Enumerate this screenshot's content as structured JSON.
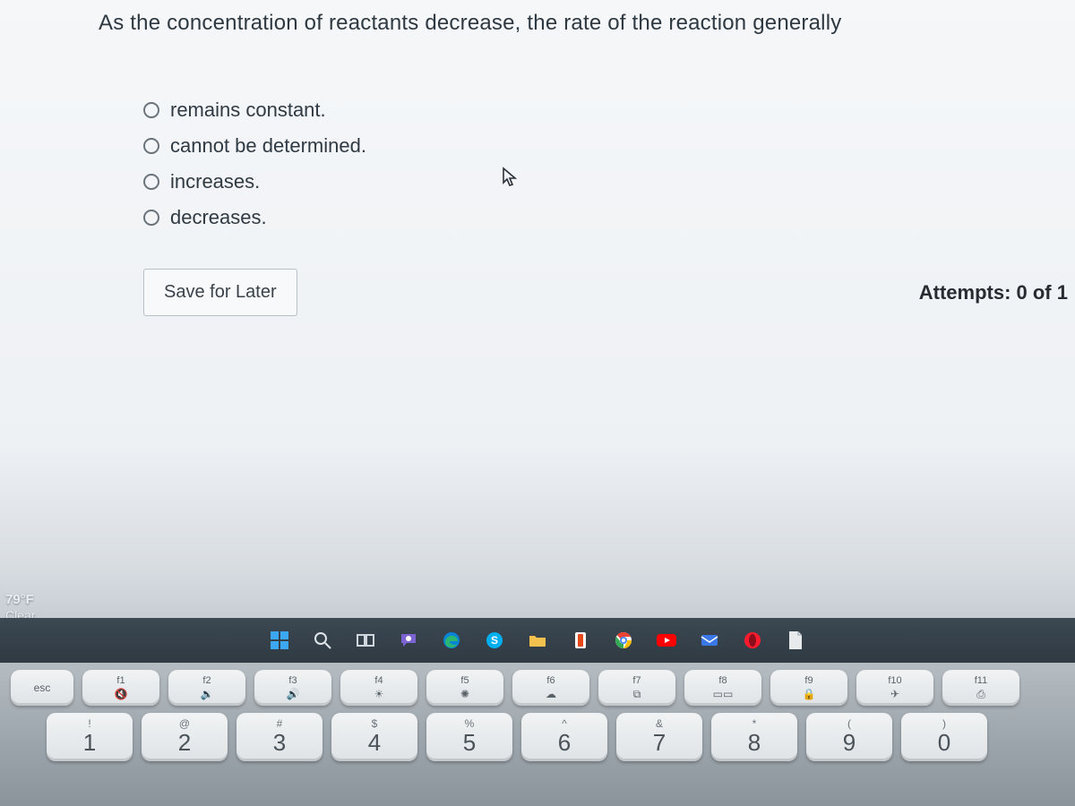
{
  "question": "As the concentration of reactants decrease, the rate of the reaction generally",
  "options": [
    "remains constant.",
    "cannot be determined.",
    "increases.",
    "decreases."
  ],
  "save_label": "Save for Later",
  "attempts_label": "Attempts: 0 of 1",
  "weather": {
    "temp": "79°F",
    "cond": "Clear"
  },
  "colors": {
    "page_bg": "#f5f7f9",
    "text": "#2e3942",
    "radio_border": "#6a737b",
    "button_border": "#b9c0c6",
    "button_bg": "#f7f9fa",
    "taskbar_top": "#3c4852",
    "taskbar_bottom": "#2f3a43",
    "keyboard_top": "#b5bcc2",
    "keyboard_bottom": "#8b949b",
    "key_face": "#e8ebed"
  },
  "taskbar": [
    {
      "name": "start-icon",
      "type": "windows",
      "color": "#3ba7f5"
    },
    {
      "name": "search-icon",
      "type": "search",
      "color": "#dfe5ea"
    },
    {
      "name": "taskview-icon",
      "type": "taskview",
      "color": "#cfd6dc"
    },
    {
      "name": "chat-icon",
      "type": "chat",
      "color": "#7d64d4"
    },
    {
      "name": "edge-icon",
      "type": "edge",
      "color": "#2bb673"
    },
    {
      "name": "skype-icon",
      "type": "circle-s",
      "color": "#00aff0"
    },
    {
      "name": "explorer-icon",
      "type": "folder",
      "color": "#f4c04e"
    },
    {
      "name": "office-icon",
      "type": "office",
      "color": "#e64a19"
    },
    {
      "name": "chrome-icon",
      "type": "chrome",
      "color": "#4285f4"
    },
    {
      "name": "youtube-icon",
      "type": "youtube",
      "color": "#ff0000"
    },
    {
      "name": "mail-icon",
      "type": "mail",
      "color": "#3b78e7"
    },
    {
      "name": "opera-icon",
      "type": "opera",
      "color": "#ff1b2d"
    },
    {
      "name": "doc-icon",
      "type": "doc",
      "color": "#e8eaec"
    }
  ],
  "keyboard": {
    "esc": "esc",
    "fn_row": [
      {
        "fn": "f1",
        "sym": "🔇"
      },
      {
        "fn": "f2",
        "sym": "🔉"
      },
      {
        "fn": "f3",
        "sym": "🔊"
      },
      {
        "fn": "f4",
        "sym": "☀"
      },
      {
        "fn": "f5",
        "sym": "✺"
      },
      {
        "fn": "f6",
        "sym": "☁"
      },
      {
        "fn": "f7",
        "sym": "⧉"
      },
      {
        "fn": "f8",
        "sym": "▭▭"
      },
      {
        "fn": "f9",
        "sym": "🔒"
      },
      {
        "fn": "f10",
        "sym": "✈"
      },
      {
        "fn": "f11",
        "sym": "⎙"
      }
    ],
    "num_row": [
      {
        "top": "!",
        "big": "1"
      },
      {
        "top": "@",
        "big": "2"
      },
      {
        "top": "#",
        "big": "3"
      },
      {
        "top": "$",
        "big": "4"
      },
      {
        "top": "%",
        "big": "5"
      },
      {
        "top": "^",
        "big": "6"
      },
      {
        "top": "&",
        "big": "7"
      },
      {
        "top": "*",
        "big": "8"
      },
      {
        "top": "(",
        "big": "9"
      },
      {
        "top": ")",
        "big": "0"
      }
    ]
  }
}
